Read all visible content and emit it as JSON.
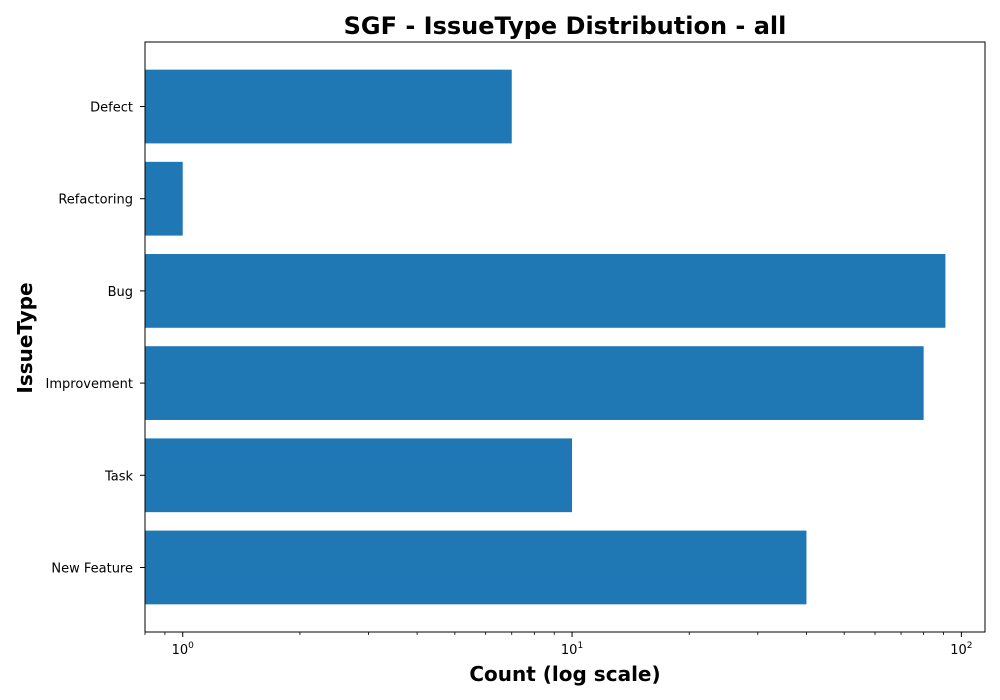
{
  "chart_data": {
    "type": "bar",
    "orientation": "horizontal",
    "title": "SGF - IssueType Distribution - all",
    "xlabel": "Count (log scale)",
    "ylabel": "IssueType",
    "x_scale": "log",
    "xlim": [
      0.8,
      115
    ],
    "x_ticks": [
      {
        "value": 1,
        "base": "10",
        "exp": "0"
      },
      {
        "value": 10,
        "base": "10",
        "exp": "1"
      },
      {
        "value": 100,
        "base": "10",
        "exp": "2"
      }
    ],
    "categories": [
      "Defect",
      "Refactoring",
      "Bug",
      "Improvement",
      "Task",
      "New Feature"
    ],
    "values": [
      7,
      1,
      91,
      80,
      10,
      40
    ],
    "bar_color": "#1f77b4",
    "grid": false,
    "legend": "none"
  }
}
